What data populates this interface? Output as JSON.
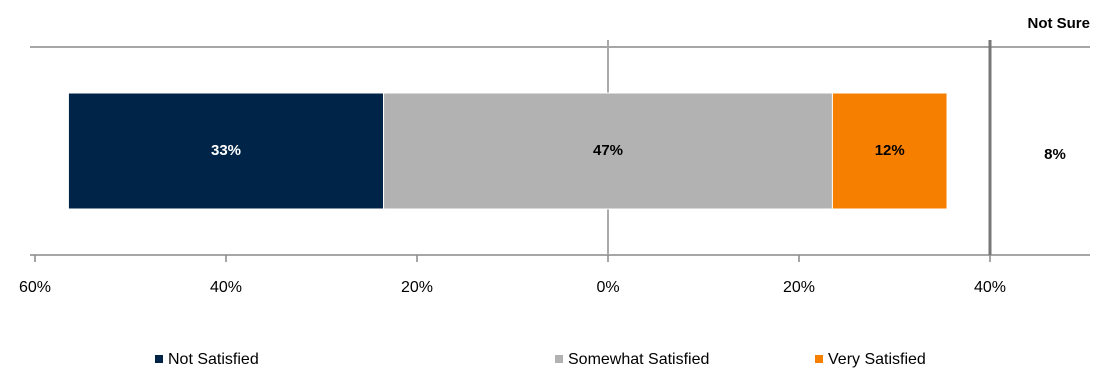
{
  "chart_data": {
    "type": "diverging_bar",
    "xlim": [
      -60,
      40
    ],
    "xticks": [
      {
        "value": -60,
        "label": "60%"
      },
      {
        "value": -40,
        "label": "40%"
      },
      {
        "value": -20,
        "label": "20%"
      },
      {
        "value": 0,
        "label": "0%"
      },
      {
        "value": 20,
        "label": "20%"
      },
      {
        "value": 40,
        "label": "40%"
      }
    ],
    "series": [
      {
        "name": "Not Satisfied",
        "color": "#002448",
        "values": [
          33
        ],
        "value_labels": [
          "33%"
        ]
      },
      {
        "name": "Somewhat Satisfied",
        "color": "#b2b2b2",
        "values": [
          47
        ],
        "value_labels": [
          "47%"
        ]
      },
      {
        "name": "Very Satisfied",
        "color": "#f77f00",
        "values": [
          12
        ],
        "value_labels": [
          "12%"
        ]
      }
    ],
    "not_sure": {
      "label": "Not Sure",
      "value": 8,
      "value_label": "8%"
    },
    "legend": "bottom"
  }
}
